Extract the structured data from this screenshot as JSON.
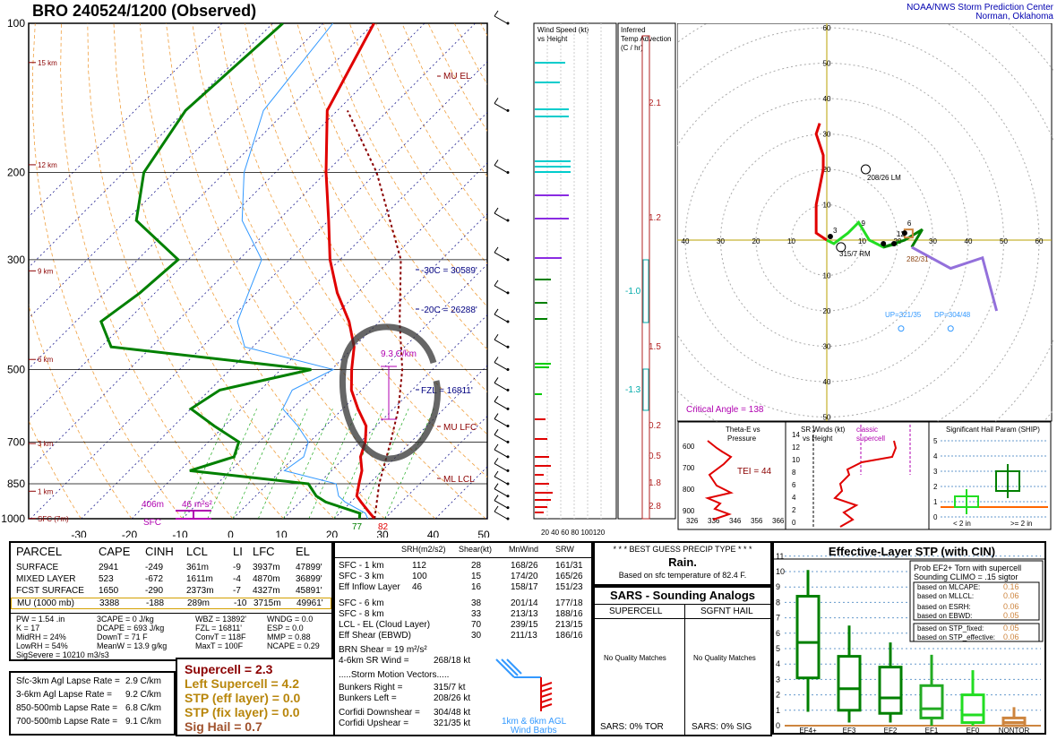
{
  "header": {
    "title": "BRO   240524/1200  (Observed)",
    "org1": "NOAA/NWS Storm Prediction Center",
    "org2": "Norman, Oklahoma"
  },
  "skewt": {
    "pressure_labels": [
      "100",
      "200",
      "300",
      "500",
      "700",
      "850",
      "1000"
    ],
    "temp_labels": [
      "-30",
      "-20",
      "-10",
      "0",
      "10",
      "20",
      "30",
      "40",
      "50"
    ],
    "height_labels": [
      "15 km",
      "12 km",
      "9 km",
      "6 km",
      "3 km",
      "1 km",
      "SFC (7m)"
    ],
    "annotations": {
      "mu_el": "MU EL",
      "m30c": "-30C = 30589'",
      "m20c": "-20C = 26288'",
      "fzl": "FZL = 16811'",
      "mu_lfc": "MU LFC",
      "ml_lcl": "ML LCL",
      "lapse": "9.3 C/km",
      "depth": "406m",
      "srh": "46 m²s²",
      "sfc": "SFC",
      "td_sfc": "77",
      "t_sfc": "82"
    }
  },
  "wind_speed_panel": {
    "title1": "Wind Speed (kt)",
    "title2": "vs Height",
    "axis": "20 40 60 80 100120"
  },
  "temp_adv_panel": {
    "title1": "Inferred",
    "title2": "Temp Advection",
    "title3": "(C / hr)",
    "values": [
      "2.1",
      "1.2",
      "-1.0",
      "1.5",
      "-1.3",
      "0.2",
      "0.5",
      "1.8",
      "2.8"
    ]
  },
  "hodograph": {
    "ring_labels": [
      "10",
      "20",
      "30",
      "40",
      "50",
      "60",
      "70"
    ],
    "x_labels": [
      "50",
      "40",
      "30",
      "20",
      "10",
      "10",
      "20",
      "30",
      "40",
      "50",
      "60",
      "70",
      "80"
    ],
    "lm": "208/26 LM",
    "rm": "315/7 RM",
    "mean": "282/31",
    "up": "UP=321/35",
    "dp": "DP=304/48",
    "crit": "Critical Angle = 138",
    "pts": [
      "3",
      "6",
      "9",
      "12"
    ]
  },
  "theta_panel": {
    "title1": "Theta-E vs",
    "title2": "Pressure",
    "tei": "TEI = 44",
    "ylabels": [
      "600",
      "700",
      "800",
      "900"
    ],
    "xlabels": [
      "326",
      "336",
      "346",
      "356",
      "366"
    ]
  },
  "srwind_panel": {
    "title1": "SR Winds (kt)",
    "title2": "vs Height",
    "note1": "classic",
    "note2": "supercell",
    "ylabels": [
      "14",
      "12",
      "10",
      "8",
      "6",
      "4",
      "2",
      "0"
    ]
  },
  "ship_panel": {
    "title": "Significant Hail Param (SHIP)",
    "ylabels": [
      "5",
      "4",
      "3",
      "2",
      "1",
      "0"
    ],
    "x1": "< 2 in",
    "x2": ">= 2 in"
  },
  "parcel": {
    "headers": [
      "PARCEL",
      "CAPE",
      "CINH",
      "LCL",
      "LI",
      "LFC",
      "EL"
    ],
    "rows": [
      [
        "SURFACE",
        "2941",
        "-249",
        "361m",
        "-9",
        "3937m",
        "47899'"
      ],
      [
        "MIXED LAYER",
        "523",
        "-672",
        "1611m",
        "-4",
        "4870m",
        "36899'"
      ],
      [
        "FCST SURFACE",
        "1650",
        "-290",
        "2373m",
        "-7",
        "4327m",
        "45891'"
      ],
      [
        "MU   (1000 mb)",
        "3388",
        "-188",
        "289m",
        "-10",
        "3715m",
        "49961'"
      ]
    ]
  },
  "indices": {
    "col1": [
      "PW = 1.54 .in",
      "K = 17",
      "MidRH = 24%",
      "LowRH = 54%",
      "SigSevere = 10210 m3/s3"
    ],
    "col2": [
      "3CAPE = 0 J/kg",
      "DCAPE = 693 J/kg",
      "DownT = 71 F",
      "MeanW = 13.9 g/kg"
    ],
    "col3": [
      "WBZ = 13892'",
      "FZL = 16811'",
      "ConvT = 118F",
      "MaxT = 100F"
    ],
    "col4": [
      "WNDG = 0.0",
      "ESP = 0.0",
      "MMP = 0.88",
      "NCAPE = 0.29"
    ]
  },
  "lapse": [
    [
      "Sfc-3km Agl Lapse Rate =",
      "2.9 C/km"
    ],
    [
      "3-6km Agl Lapse Rate =",
      "9.2 C/km"
    ],
    [
      "850-500mb Lapse Rate =",
      "6.8 C/km"
    ],
    [
      "700-500mb Lapse Rate =",
      "9.1 C/km"
    ]
  ],
  "composites": {
    "supercell": "Supercell = 2.3",
    "left": "Left Supercell = 4.2",
    "stp_eff": "STP (eff layer) = 0.0",
    "stp_fix": "STP (fix layer) = 0.0",
    "sighail": "Sig Hail = 0.7"
  },
  "kinematics": {
    "headers": [
      "SRH(m2/s2)",
      "Shear(kt)",
      "MnWind",
      "SRW"
    ],
    "rows": [
      [
        "SFC - 1 km",
        "112",
        "28",
        "168/26",
        "161/31"
      ],
      [
        "SFC - 3 km",
        "100",
        "15",
        "174/20",
        "165/26"
      ],
      [
        "Eff Inflow Layer",
        "46",
        "16",
        "158/17",
        "151/23"
      ],
      [
        "SFC - 6 km",
        "",
        "38",
        "201/14",
        "177/18"
      ],
      [
        "SFC - 8 km",
        "",
        "33",
        "213/13",
        "188/16"
      ],
      [
        "LCL - EL (Cloud Layer)",
        "",
        "70",
        "239/15",
        "213/15"
      ],
      [
        "Eff Shear (EBWD)",
        "",
        "30",
        "211/13",
        "186/16"
      ]
    ],
    "brn": "BRN Shear =  19 m²/s²",
    "srwind": "4-6km SR Wind =",
    "srwind_val": "268/18 kt",
    "smv": ".....Storm Motion Vectors.....",
    "motions": [
      [
        "Bunkers Right =",
        "315/7 kt"
      ],
      [
        "Bunkers Left =",
        "208/26 kt"
      ],
      [
        "Corfidi Downshear =",
        "304/48 kt"
      ],
      [
        "Corfidi Upshear =",
        "321/35 kt"
      ]
    ],
    "barb_label1": "1km & 6km AGL",
    "barb_label2": "Wind Barbs"
  },
  "precip": {
    "title": "* * * BEST GUESS PRECIP TYPE * * *",
    "value": "Rain.",
    "note": "Based on sfc temperature of 82.4 F."
  },
  "sars": {
    "title": "SARS - Sounding Analogs",
    "col1": "SUPERCELL",
    "col2": "SGFNT HAIL",
    "nomatch": "No Quality Matches",
    "foot1": "SARS:  0% TOR",
    "foot2": "SARS:  0% SIG"
  },
  "stp_panel": {
    "title": "Effective-Layer STP (with CIN)",
    "box1": "Prob EF2+ Torn with supercell",
    "box2": "Sounding CLIMO = .15 sigtor",
    "lines": [
      [
        "based on MLCAPE:",
        "0.16"
      ],
      [
        "based on MLLCL:",
        "0.06"
      ],
      [
        "based on ESRH:",
        "0.06"
      ],
      [
        "based on EBWD:",
        "0.05"
      ],
      [
        "based on STP_fixed:",
        "0.05"
      ],
      [
        "based on STP_effective:",
        "0.06"
      ]
    ],
    "ylabels": [
      "11",
      "10",
      "9",
      "8",
      "7",
      "6",
      "5",
      "4",
      "3",
      "2",
      "1",
      "0"
    ],
    "categories": [
      "EF4+",
      "EF3",
      "EF2",
      "EF1",
      "EF0",
      "NONTOR"
    ]
  },
  "colors": {
    "temp": "#e00000",
    "dewpoint": "#008000",
    "wetbulb": "#3399ff",
    "parcel": "#8b0000",
    "magenta": "#b000b0",
    "dry_adiabat": "#f0a040",
    "cyan": "#00cccc"
  },
  "chart_data": [
    {
      "type": "line",
      "title": "BRO 240524/1200 (Observed)",
      "xlabel": "Temperature (C)",
      "ylabel": "Pressure (mb)",
      "xlim": [
        -30,
        50
      ],
      "ylim": [
        1000,
        100
      ],
      "series": [
        {
          "name": "Temperature",
          "pressure": [
            1000,
            975,
            925,
            900,
            850,
            800,
            750,
            700,
            650,
            600,
            550,
            500,
            450,
            400,
            350,
            300,
            250,
            200,
            150,
            100
          ],
          "values": [
            28,
            26,
            22,
            20,
            18,
            16,
            13,
            11,
            8,
            3,
            -2,
            -6,
            -10,
            -16,
            -24,
            -32,
            -40,
            -50,
            -62,
            -70
          ]
        },
        {
          "name": "Dewpoint",
          "pressure": [
            1000,
            975,
            925,
            900,
            850,
            800,
            750,
            700,
            650,
            600,
            550,
            500,
            450,
            400,
            350,
            300,
            250,
            200,
            150,
            100
          ],
          "values": [
            25,
            24,
            15,
            12,
            8,
            -18,
            -12,
            -14,
            -22,
            -30,
            -28,
            -14,
            -58,
            -65,
            -63,
            -62,
            -78,
            -86,
            -90,
            -88
          ]
        },
        {
          "name": "Parcel",
          "pressure": [
            1000,
            850,
            700,
            600,
            500,
            400,
            300,
            200,
            150
          ],
          "values": [
            28,
            22,
            16,
            11,
            4,
            -6,
            -18,
            -40,
            -58
          ]
        }
      ]
    },
    {
      "type": "line",
      "title": "Effective-Layer STP (with CIN)",
      "categories": [
        "EF4+",
        "EF3",
        "EF2",
        "EF1",
        "EF0",
        "NONTOR"
      ],
      "series": [
        {
          "name": "median",
          "values": [
            5.4,
            2.4,
            1.8,
            1.1,
            0.7,
            0.2
          ]
        },
        {
          "name": "p25",
          "values": [
            3.1,
            1.0,
            0.8,
            0.5,
            0.2,
            0.0
          ]
        },
        {
          "name": "p75",
          "values": [
            8.4,
            4.5,
            3.8,
            2.6,
            2.0,
            0.5
          ]
        }
      ],
      "ylim": [
        0,
        11
      ]
    }
  ]
}
